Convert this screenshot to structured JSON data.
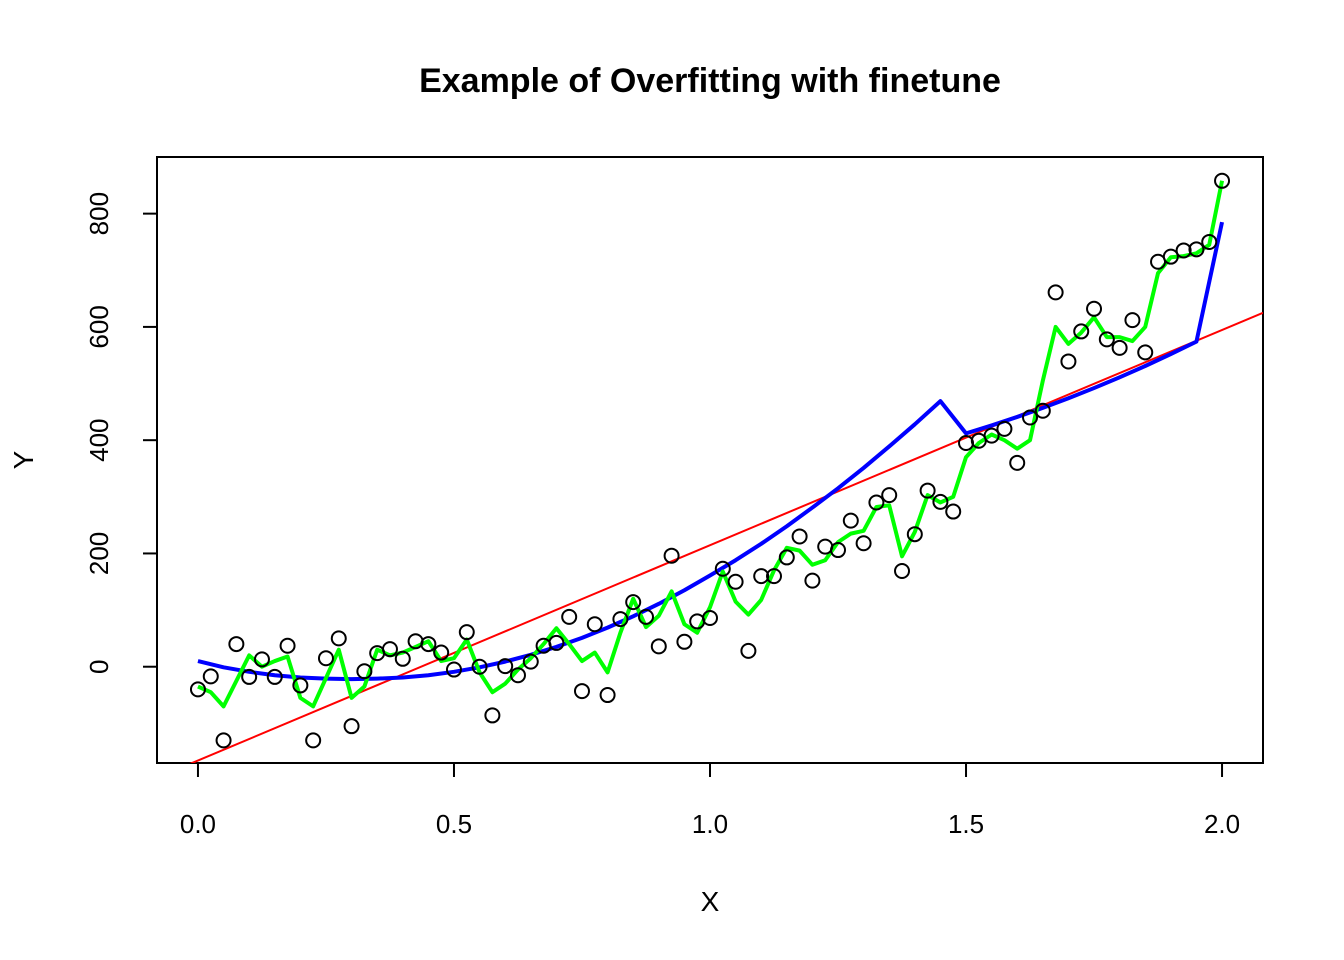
{
  "chart_data": {
    "type": "scatter",
    "title": "Example of Overfitting with finetune",
    "xlabel": "X",
    "ylabel": "Y",
    "xlim": [
      -0.08,
      2.08
    ],
    "ylim": [
      -170,
      900
    ],
    "xticks": [
      0.0,
      0.5,
      1.0,
      1.5,
      2.0
    ],
    "xtick_labels": [
      "0.0",
      "0.5",
      "1.0",
      "1.5",
      "2.0"
    ],
    "yticks": [
      0,
      200,
      400,
      600,
      800
    ],
    "ytick_labels": [
      "0",
      "200",
      "400",
      "600",
      "800"
    ],
    "grid": false,
    "legend": "none",
    "points": {
      "x": [
        0.0,
        0.025,
        0.05,
        0.075,
        0.1,
        0.125,
        0.15,
        0.175,
        0.2,
        0.225,
        0.25,
        0.275,
        0.3,
        0.325,
        0.35,
        0.375,
        0.4,
        0.425,
        0.45,
        0.475,
        0.5,
        0.525,
        0.55,
        0.575,
        0.6,
        0.625,
        0.65,
        0.675,
        0.7,
        0.725,
        0.75,
        0.775,
        0.8,
        0.825,
        0.85,
        0.875,
        0.9,
        0.925,
        0.95,
        0.975,
        1.0,
        1.025,
        1.05,
        1.075,
        1.1,
        1.125,
        1.15,
        1.175,
        1.2,
        1.225,
        1.25,
        1.275,
        1.3,
        1.325,
        1.35,
        1.375,
        1.4,
        1.425,
        1.45,
        1.475,
        1.5,
        1.525,
        1.55,
        1.575,
        1.6,
        1.625,
        1.65,
        1.675,
        1.7,
        1.725,
        1.75,
        1.775,
        1.8,
        1.825,
        1.85,
        1.875,
        1.9,
        1.925,
        1.95,
        1.975,
        2.0
      ],
      "y": [
        -40,
        -17,
        -130,
        40,
        -18,
        13,
        -18,
        37,
        -33,
        -130,
        15,
        50,
        -105,
        -8,
        24,
        31,
        14,
        45,
        40,
        25,
        -5,
        61,
        0,
        -86,
        1,
        -15,
        9,
        37,
        42,
        88,
        -43,
        75,
        -50,
        84,
        114,
        88,
        36,
        196,
        44,
        80,
        86,
        173,
        150,
        28,
        160,
        160,
        193,
        230,
        152,
        212,
        206,
        258,
        218,
        290,
        303,
        169,
        234,
        311,
        291,
        274,
        395,
        399,
        408,
        420,
        360,
        440,
        452,
        661,
        539,
        592,
        632,
        578,
        563,
        612,
        555,
        715,
        724,
        735,
        737,
        750,
        858
      ]
    },
    "series": [
      {
        "type": "line",
        "color": "#ff0000",
        "x": [
          -0.08,
          2.08
        ],
        "y": [
          -196,
          625
        ]
      },
      {
        "type": "line",
        "color": "#0000ff",
        "x": [
          0.0,
          0.05,
          0.1,
          0.15,
          0.2,
          0.25,
          0.3,
          0.35,
          0.4,
          0.45,
          0.5,
          0.55,
          0.6,
          0.65,
          0.7,
          0.75,
          0.8,
          0.85,
          0.9,
          0.95,
          1.0,
          1.05,
          1.1,
          1.15,
          1.2,
          1.25,
          1.3,
          1.35,
          1.4,
          1.45,
          1.5,
          1.55,
          1.6,
          1.65,
          1.7,
          1.75,
          1.8,
          1.85,
          1.9,
          1.95,
          2.0
        ],
        "y": [
          10,
          -1,
          -9,
          -15,
          -19,
          -21,
          -22,
          -21,
          -19,
          -15,
          -9,
          -1,
          9,
          21,
          35,
          51,
          69,
          89,
          111,
          135,
          161,
          188,
          217,
          248,
          281,
          315,
          351,
          389,
          428,
          469,
          412,
          426,
          441,
          457,
          474,
          492,
          511,
          531,
          552,
          574,
          785
        ]
      },
      {
        "type": "line",
        "color": "#00ff00",
        "x": [
          0.0,
          0.025,
          0.05,
          0.075,
          0.1,
          0.125,
          0.15,
          0.175,
          0.2,
          0.225,
          0.25,
          0.275,
          0.3,
          0.325,
          0.35,
          0.375,
          0.4,
          0.425,
          0.45,
          0.475,
          0.5,
          0.525,
          0.55,
          0.575,
          0.6,
          0.625,
          0.65,
          0.675,
          0.7,
          0.725,
          0.75,
          0.775,
          0.8,
          0.825,
          0.85,
          0.875,
          0.9,
          0.925,
          0.95,
          0.975,
          1.0,
          1.025,
          1.05,
          1.075,
          1.1,
          1.125,
          1.15,
          1.175,
          1.2,
          1.225,
          1.25,
          1.275,
          1.3,
          1.325,
          1.35,
          1.375,
          1.4,
          1.425,
          1.45,
          1.475,
          1.5,
          1.525,
          1.55,
          1.575,
          1.6,
          1.625,
          1.65,
          1.675,
          1.7,
          1.725,
          1.75,
          1.775,
          1.8,
          1.825,
          1.85,
          1.875,
          1.9,
          1.925,
          1.95,
          1.975,
          2.0
        ],
        "y": [
          -35,
          -45,
          -70,
          -25,
          20,
          0,
          10,
          18,
          -55,
          -70,
          -20,
          30,
          -55,
          -35,
          30,
          20,
          25,
          35,
          45,
          10,
          15,
          48,
          -10,
          -45,
          -30,
          -5,
          15,
          40,
          68,
          40,
          10,
          25,
          -10,
          60,
          120,
          70,
          90,
          133,
          75,
          60,
          105,
          168,
          115,
          92,
          118,
          170,
          210,
          205,
          180,
          188,
          220,
          235,
          240,
          282,
          285,
          195,
          238,
          303,
          290,
          300,
          370,
          395,
          410,
          400,
          385,
          400,
          505,
          600,
          570,
          590,
          617,
          582,
          582,
          575,
          600,
          695,
          723,
          725,
          730,
          745,
          858
        ]
      }
    ]
  }
}
